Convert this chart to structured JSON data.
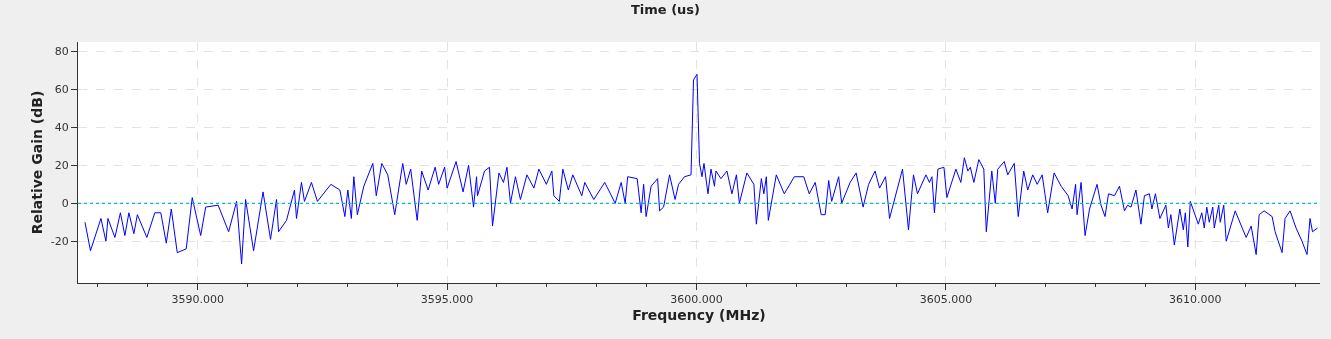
{
  "chart_data": {
    "type": "line",
    "title": "Time (us)",
    "xlabel": "Frequency (MHz)",
    "ylabel": "Relative Gain (dB)",
    "xlim": [
      3587.6,
      3612.5
    ],
    "xticks": [
      {
        "value": 3588,
        "label": null
      },
      {
        "value": 3589,
        "label": null
      },
      {
        "value": 3590,
        "label": "3590.000"
      },
      {
        "value": 3591,
        "label": null
      },
      {
        "value": 3592,
        "label": null
      },
      {
        "value": 3593,
        "label": null
      },
      {
        "value": 3594,
        "label": null
      },
      {
        "value": 3595,
        "label": "3595.000"
      },
      {
        "value": 3596,
        "label": null
      },
      {
        "value": 3597,
        "label": null
      },
      {
        "value": 3598,
        "label": null
      },
      {
        "value": 3599,
        "label": null
      },
      {
        "value": 3600,
        "label": "3600.000"
      },
      {
        "value": 3601,
        "label": null
      },
      {
        "value": 3602,
        "label": null
      },
      {
        "value": 3603,
        "label": null
      },
      {
        "value": 3604,
        "label": null
      },
      {
        "value": 3605,
        "label": "3605.000"
      },
      {
        "value": 3606,
        "label": null
      },
      {
        "value": 3607,
        "label": null
      },
      {
        "value": 3608,
        "label": null
      },
      {
        "value": 3609,
        "label": null
      },
      {
        "value": 3610,
        "label": "3610.000"
      },
      {
        "value": 3611,
        "label": null
      },
      {
        "value": 3612,
        "label": null
      }
    ],
    "ylim": [
      -42,
      85
    ],
    "yticks": [
      -20,
      0,
      20,
      40,
      60,
      80
    ],
    "grid": true,
    "marker": "none",
    "line_style": "solid",
    "ref_lines": [
      {
        "axis": "y",
        "value": 0,
        "color": "#00bfbf",
        "line_style": "dotted"
      }
    ],
    "series": [
      {
        "color": "#0000ff",
        "x": [
          3587.74,
          3587.85,
          3588.06,
          3588.16,
          3588.2,
          3588.34,
          3588.45,
          3588.54,
          3588.62,
          3588.72,
          3588.79,
          3588.98,
          3589.14,
          3589.26,
          3589.37,
          3589.47,
          3589.59,
          3589.77,
          3589.89,
          3590.06,
          3590.16,
          3590.41,
          3590.62,
          3590.78,
          3590.88,
          3590.96,
          3591.12,
          3591.31,
          3591.46,
          3591.58,
          3591.62,
          3591.78,
          3591.94,
          3591.98,
          3592.08,
          3592.14,
          3592.28,
          3592.4,
          3592.67,
          3592.85,
          3592.95,
          3593.01,
          3593.08,
          3593.13,
          3593.2,
          3593.33,
          3593.51,
          3593.58,
          3593.69,
          3593.81,
          3593.95,
          3594.11,
          3594.18,
          3594.27,
          3594.4,
          3594.49,
          3594.62,
          3594.76,
          3594.83,
          3594.95,
          3595.0,
          3595.18,
          3595.32,
          3595.43,
          3595.53,
          3595.59,
          3595.61,
          3595.75,
          3595.85,
          3595.91,
          3596.04,
          3596.13,
          3596.2,
          3596.27,
          3596.37,
          3596.47,
          3596.6,
          3596.74,
          3596.84,
          3596.99,
          3597.1,
          3597.14,
          3597.25,
          3597.32,
          3597.43,
          3597.52,
          3597.7,
          3597.76,
          3597.94,
          3598.16,
          3598.37,
          3598.49,
          3598.57,
          3598.62,
          3598.81,
          3598.89,
          3598.94,
          3598.99,
          3599.09,
          3599.22,
          3599.26,
          3599.34,
          3599.46,
          3599.57,
          3599.64,
          3599.76,
          3599.89,
          3599.94,
          3600.01,
          3600.06,
          3600.11,
          3600.15,
          3600.23,
          3600.29,
          3600.36,
          3600.39,
          3600.49,
          3600.61,
          3600.71,
          3600.8,
          3600.86,
          3601.01,
          3601.15,
          3601.2,
          3601.3,
          3601.35,
          3601.4,
          3601.44,
          3601.6,
          3601.76,
          3601.96,
          3602.15,
          3602.26,
          3602.38,
          3602.5,
          3602.58,
          3602.65,
          3602.71,
          3602.85,
          3602.91,
          3603.08,
          3603.2,
          3603.34,
          3603.45,
          3603.58,
          3603.67,
          3603.79,
          3603.87,
          3603.95,
          3604.13,
          3604.25,
          3604.35,
          3604.43,
          3604.6,
          3604.67,
          3604.72,
          3604.77,
          3604.84,
          3604.96,
          3605.02,
          3605.2,
          3605.3,
          3605.37,
          3605.44,
          3605.49,
          3605.56,
          3605.66,
          3605.76,
          3605.81,
          3605.92,
          3605.99,
          3606.04,
          3606.17,
          3606.24,
          3606.37,
          3606.45,
          3606.56,
          3606.64,
          3606.74,
          3606.83,
          3606.93,
          3607.04,
          3607.17,
          3607.31,
          3607.45,
          3607.53,
          3607.6,
          3607.63,
          3607.71,
          3607.79,
          3607.88,
          3608.03,
          3608.11,
          3608.19,
          3608.26,
          3608.38,
          3608.48,
          3608.58,
          3608.64,
          3608.71,
          3608.81,
          3608.91,
          3608.98,
          3609.08,
          3609.13,
          3609.2,
          3609.29,
          3609.41,
          3609.46,
          3609.51,
          3609.58,
          3609.69,
          3609.76,
          3609.8,
          3609.85,
          3609.9,
          3610.06,
          3610.13,
          3610.18,
          3610.23,
          3610.28,
          3610.35,
          3610.38,
          3610.47,
          3610.5,
          3610.57,
          3610.62,
          3610.8,
          3610.94,
          3611.02,
          3611.12,
          3611.22,
          3611.28,
          3611.38,
          3611.54,
          3611.6,
          3611.74,
          3611.8,
          3611.9,
          3612.02,
          3612.14,
          3612.24,
          3612.3,
          3612.35,
          3612.45
        ],
        "values": [
          -10,
          -25,
          -8,
          -20,
          -8,
          -18,
          -5,
          -17,
          -5,
          -16,
          -6,
          -18,
          -5,
          -5,
          -21,
          -3,
          -26,
          -24,
          3,
          -17,
          -2,
          -1,
          -15,
          1,
          -32,
          2,
          -25,
          6,
          -19,
          2,
          -15,
          -9,
          7,
          -8,
          11,
          1,
          11,
          1,
          10,
          7,
          -7,
          7,
          -8,
          14,
          -6,
          9,
          21,
          4,
          21,
          15,
          -6,
          21,
          10,
          18,
          -9,
          17,
          7,
          19,
          10,
          19,
          8,
          22,
          6,
          20,
          -2,
          14,
          4,
          17,
          19,
          -12,
          16,
          11,
          19,
          0,
          14,
          2,
          15,
          8,
          18,
          10,
          17,
          4,
          1,
          18,
          7,
          15,
          4,
          11,
          2,
          11,
          0,
          11,
          0,
          14,
          13,
          -5,
          10,
          -7,
          9,
          13,
          -4,
          -2,
          15,
          2,
          10,
          14,
          15,
          65,
          68,
          21,
          14,
          21,
          5,
          18,
          9,
          17,
          13,
          17,
          5,
          15,
          0,
          16,
          10,
          -11,
          13,
          5,
          14,
          -9,
          15,
          5,
          14,
          14,
          5,
          11,
          -6,
          -6,
          12,
          1,
          14,
          0,
          11,
          16,
          -2,
          10,
          17,
          8,
          14,
          -8,
          0,
          18,
          -14,
          15,
          5,
          15,
          11,
          14,
          -5,
          18,
          19,
          3,
          18,
          11,
          24,
          17,
          19,
          11,
          23,
          18,
          -15,
          17,
          0,
          18,
          22,
          15,
          21,
          -7,
          17,
          7,
          15,
          10,
          15,
          -5,
          16,
          9,
          4,
          -3,
          10,
          -6,
          11,
          -17,
          -3,
          10,
          -1,
          -7,
          5,
          4,
          9,
          -4,
          -1,
          -2,
          7,
          -11,
          4,
          5,
          -3,
          5,
          -8,
          -1,
          -13,
          -6,
          -22,
          -3,
          -14,
          -5,
          -23,
          1,
          -11,
          -5,
          -13,
          -2,
          -10,
          -2,
          -13,
          -1,
          -10,
          -1,
          -20,
          -4,
          -13,
          -18,
          -12,
          -27,
          -6,
          -4,
          -7,
          -15,
          -26,
          -8,
          -4,
          -13,
          -20,
          -27,
          -8,
          -15,
          -13
        ]
      }
    ]
  }
}
